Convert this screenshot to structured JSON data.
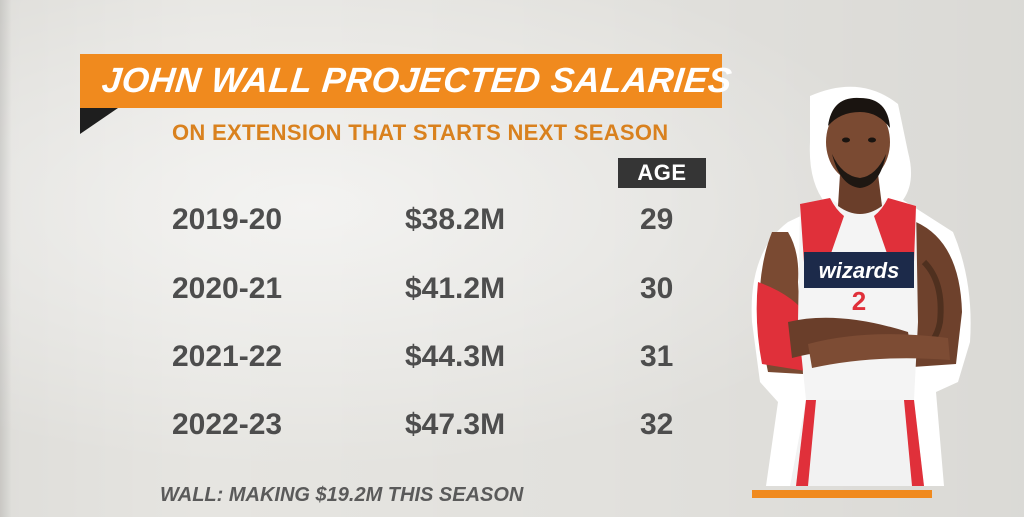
{
  "graphic": {
    "title": "JOHN WALL PROJECTED SALARIES",
    "subtitle": "ON EXTENSION THAT STARTS NEXT SEASON",
    "age_header": "AGE",
    "rows": [
      {
        "season": "2019-20",
        "salary": "$38.2M",
        "age": "29"
      },
      {
        "season": "2020-21",
        "salary": "$41.2M",
        "age": "30"
      },
      {
        "season": "2021-22",
        "salary": "$44.3M",
        "age": "31"
      },
      {
        "season": "2022-23",
        "salary": "$47.3M",
        "age": "32"
      }
    ],
    "footnote": "WALL: MAKING $19.2M THIS SEASON"
  },
  "player": {
    "jersey_text": "wizards",
    "jersey_number": "2"
  },
  "colors": {
    "accent_orange": "#f08a1e",
    "subtitle_orange": "#d9811e",
    "text_gray": "#4d4d4d",
    "age_badge": "#353535",
    "jersey_red": "#e0303a",
    "jersey_navy": "#1c2a4a"
  }
}
